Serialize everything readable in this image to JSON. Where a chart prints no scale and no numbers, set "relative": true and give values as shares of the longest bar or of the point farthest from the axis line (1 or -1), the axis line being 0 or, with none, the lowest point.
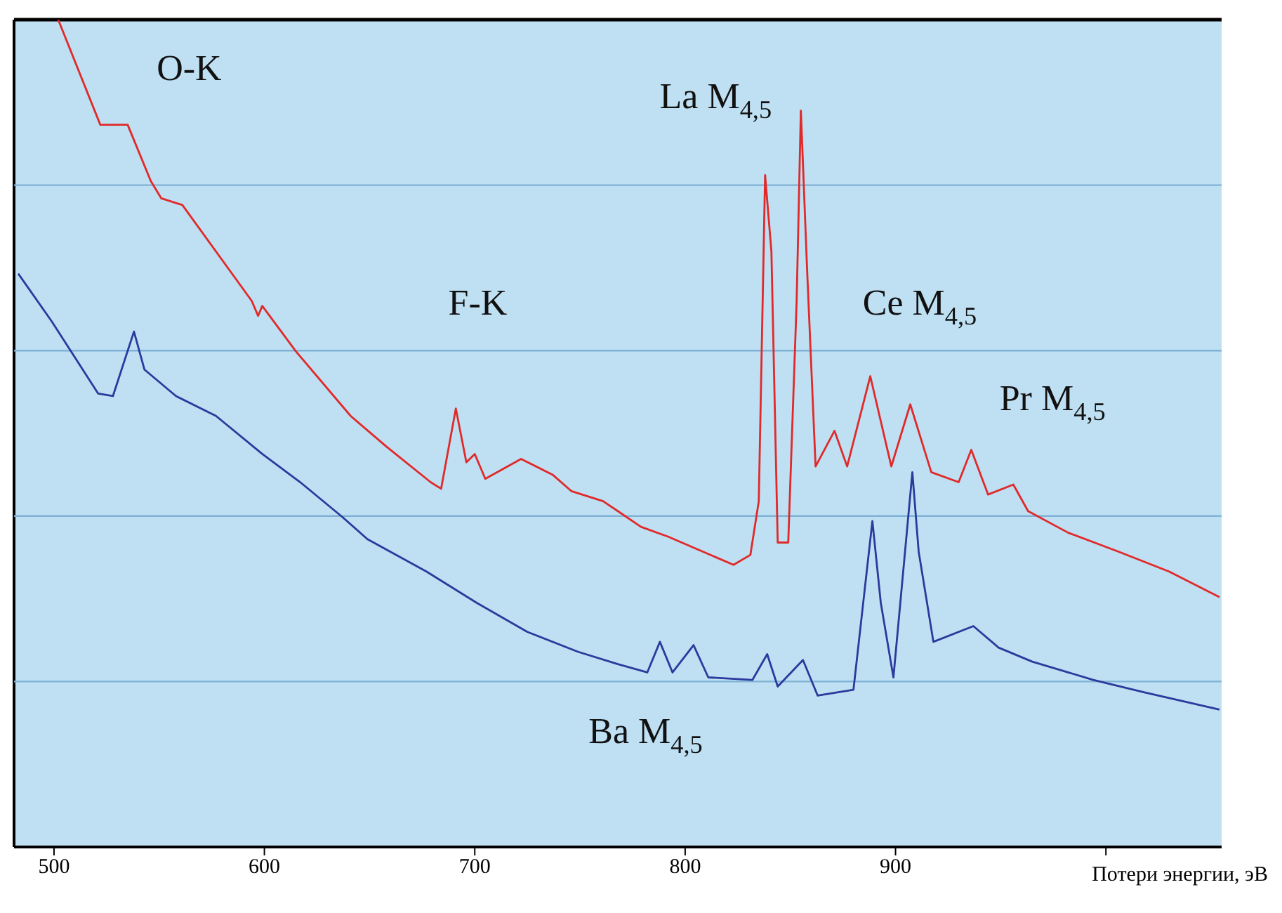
{
  "chart_data": {
    "type": "line",
    "relative": true,
    "xlabel": "Потери энергии, эВ",
    "xlim": [
      481,
      1055
    ],
    "xticks": [
      500,
      600,
      700,
      800,
      900,
      {
        "value": 1000,
        "label": null
      }
    ],
    "marker": "none",
    "line_style": "solid",
    "ref_lines": [
      {
        "axis": "y",
        "value": 0.2,
        "color": "#7fb2d6"
      },
      {
        "axis": "y",
        "value": 0.4,
        "color": "#7fb2d6"
      },
      {
        "axis": "y",
        "value": 0.6,
        "color": "#7fb2d6"
      },
      {
        "axis": "y",
        "value": 0.8,
        "color": "#7fb2d6"
      }
    ],
    "annotations": [
      "O-K",
      "F-K",
      "La M$_{4,5}$",
      "Ce M$_{4,5}$",
      "Pr M$_{4,5}$",
      "Ba M$_{4,5}$"
    ],
    "series": [
      {
        "color": "#e02a2a",
        "x": [
          502,
          522,
          535,
          546,
          551,
          561,
          594,
          597,
          599,
          615,
          641,
          658,
          679,
          684,
          691,
          696,
          700,
          705,
          722,
          737,
          746,
          761,
          768,
          779,
          792,
          823,
          831,
          835,
          838,
          841,
          844,
          849,
          853,
          855,
          858,
          862,
          871,
          877,
          888,
          898,
          907,
          917,
          930,
          936,
          944,
          956,
          963,
          982,
          1006,
          1030,
          1054
        ],
        "values": [
          1,
          0.873,
          0.873,
          0.805,
          0.784,
          0.776,
          0.66,
          0.642,
          0.654,
          0.599,
          0.521,
          0.484,
          0.441,
          0.433,
          0.53,
          0.465,
          0.475,
          0.445,
          0.469,
          0.45,
          0.43,
          0.418,
          0.406,
          0.387,
          0.375,
          0.341,
          0.353,
          0.418,
          0.812,
          0.72,
          0.368,
          0.368,
          0.66,
          0.89,
          0.696,
          0.46,
          0.503,
          0.46,
          0.569,
          0.46,
          0.535,
          0.453,
          0.441,
          0.48,
          0.426,
          0.438,
          0.406,
          0.38,
          0.357,
          0.333,
          0.302
        ]
      },
      {
        "color": "#2b3a9c",
        "x": [
          483,
          499,
          521,
          528,
          538,
          543,
          558,
          577,
          599,
          617,
          637,
          649,
          677,
          701,
          725,
          749,
          768,
          782,
          788,
          794,
          804,
          811,
          832,
          839,
          844,
          856,
          863,
          880,
          889,
          893,
          899,
          908,
          911,
          918,
          937,
          949,
          965,
          994,
          1018,
          1054
        ],
        "values": [
          0.693,
          0.635,
          0.548,
          0.545,
          0.623,
          0.577,
          0.545,
          0.521,
          0.475,
          0.441,
          0.399,
          0.372,
          0.333,
          0.295,
          0.26,
          0.236,
          0.221,
          0.211,
          0.248,
          0.211,
          0.244,
          0.205,
          0.202,
          0.233,
          0.194,
          0.226,
          0.183,
          0.19,
          0.394,
          0.295,
          0.205,
          0.453,
          0.357,
          0.248,
          0.267,
          0.241,
          0.224,
          0.202,
          0.187,
          0.166
        ]
      }
    ]
  }
}
